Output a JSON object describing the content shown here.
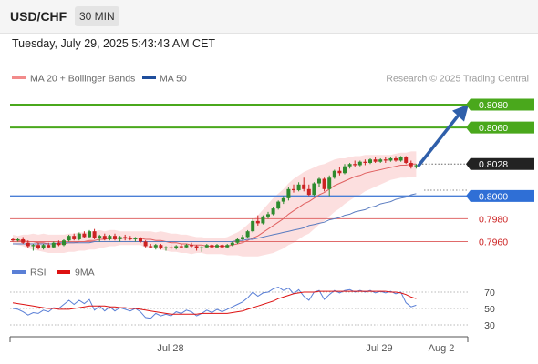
{
  "header": {
    "symbol": "USD/CHF",
    "timeframe": "30 MIN",
    "datetime": "Tuesday, July 29, 2025 5:43:43 AM CET"
  },
  "legend": {
    "ma20": "MA 20 + Bollinger Bands",
    "ma50": "MA 50",
    "credit": "Research © 2025 Trading Central"
  },
  "colors": {
    "up": "#2e8b2e",
    "down": "#cc2222",
    "target": "#4aa81c",
    "pivot": "#4a7fd6",
    "support": "#e06a6a",
    "ma20": "#e06060",
    "ma50": "#5a7cc0",
    "band": "#fcd9d9",
    "arrow": "#2f5faa"
  },
  "chart_data": [
    {
      "type": "candlestick",
      "ylim": [
        0.795,
        0.8092
      ],
      "levels": [
        {
          "value": 0.808,
          "label": "0.8080",
          "kind": "target"
        },
        {
          "value": 0.806,
          "label": "0.8060",
          "kind": "target"
        },
        {
          "value": 0.8028,
          "label": "0.8028",
          "kind": "last"
        },
        {
          "value": 0.8,
          "label": "0.8000",
          "kind": "pivot"
        },
        {
          "value": 0.798,
          "label": "0.7980",
          "kind": "support"
        },
        {
          "value": 0.796,
          "label": "0.7960",
          "kind": "support"
        }
      ],
      "x_ticks": [
        "Jul 28",
        "Jul 29",
        "Aug 2"
      ],
      "series": [
        {
          "name": "MA 20 + Bollinger Bands"
        },
        {
          "name": "MA 50"
        }
      ],
      "candles": [
        [
          0.7962,
          0.7963,
          0.796,
          0.7961
        ],
        [
          0.7961,
          0.7963,
          0.796,
          0.7962
        ],
        [
          0.7962,
          0.7964,
          0.7958,
          0.7959
        ],
        [
          0.7959,
          0.7961,
          0.7954,
          0.7956
        ],
        [
          0.7956,
          0.7958,
          0.7952,
          0.7957
        ],
        [
          0.7957,
          0.7959,
          0.7953,
          0.7954
        ],
        [
          0.7954,
          0.7958,
          0.7953,
          0.7957
        ],
        [
          0.7957,
          0.7959,
          0.7954,
          0.7955
        ],
        [
          0.7955,
          0.796,
          0.7954,
          0.7959
        ],
        [
          0.7959,
          0.7961,
          0.7956,
          0.7957
        ],
        [
          0.7957,
          0.7962,
          0.7956,
          0.7961
        ],
        [
          0.7961,
          0.7966,
          0.796,
          0.7965
        ],
        [
          0.7965,
          0.7967,
          0.7961,
          0.7962
        ],
        [
          0.7962,
          0.7968,
          0.7961,
          0.7967
        ],
        [
          0.7967,
          0.7969,
          0.7963,
          0.7964
        ],
        [
          0.7964,
          0.797,
          0.7963,
          0.7969
        ],
        [
          0.7969,
          0.7971,
          0.7962,
          0.7963
        ],
        [
          0.7963,
          0.7966,
          0.796,
          0.7965
        ],
        [
          0.7965,
          0.7967,
          0.7961,
          0.7962
        ],
        [
          0.7962,
          0.7966,
          0.7961,
          0.7965
        ],
        [
          0.7965,
          0.7967,
          0.7961,
          0.7962
        ],
        [
          0.7962,
          0.7965,
          0.796,
          0.7964
        ],
        [
          0.7964,
          0.7966,
          0.7961,
          0.7963
        ],
        [
          0.7963,
          0.7965,
          0.7961,
          0.7962
        ],
        [
          0.7962,
          0.7964,
          0.796,
          0.7963
        ],
        [
          0.7963,
          0.7964,
          0.7959,
          0.796
        ],
        [
          0.796,
          0.7961,
          0.7955,
          0.7956
        ],
        [
          0.7956,
          0.7958,
          0.7954,
          0.7955
        ],
        [
          0.7955,
          0.7958,
          0.7953,
          0.7957
        ],
        [
          0.7957,
          0.7958,
          0.7953,
          0.7954
        ],
        [
          0.7954,
          0.7956,
          0.7952,
          0.7955
        ],
        [
          0.7955,
          0.7957,
          0.7953,
          0.7954
        ],
        [
          0.7954,
          0.7957,
          0.7953,
          0.7956
        ],
        [
          0.7956,
          0.7958,
          0.7954,
          0.7955
        ],
        [
          0.7955,
          0.7958,
          0.7954,
          0.7957
        ],
        [
          0.7957,
          0.7959,
          0.7955,
          0.7956
        ],
        [
          0.7956,
          0.7957,
          0.7952,
          0.7954
        ],
        [
          0.7954,
          0.7956,
          0.7951,
          0.7955
        ],
        [
          0.7955,
          0.7958,
          0.7954,
          0.7957
        ],
        [
          0.7957,
          0.7958,
          0.7954,
          0.7955
        ],
        [
          0.7955,
          0.7958,
          0.7954,
          0.7957
        ],
        [
          0.7957,
          0.7958,
          0.7954,
          0.7955
        ],
        [
          0.7955,
          0.7958,
          0.7954,
          0.7957
        ],
        [
          0.7957,
          0.796,
          0.7956,
          0.7959
        ],
        [
          0.7959,
          0.7963,
          0.7958,
          0.7962
        ],
        [
          0.7962,
          0.7966,
          0.7961,
          0.7964
        ],
        [
          0.7964,
          0.797,
          0.7963,
          0.7969
        ],
        [
          0.7969,
          0.798,
          0.7968,
          0.7978
        ],
        [
          0.7978,
          0.7983,
          0.7974,
          0.7976
        ],
        [
          0.7976,
          0.7983,
          0.7975,
          0.7982
        ],
        [
          0.7982,
          0.7986,
          0.798,
          0.7984
        ],
        [
          0.7984,
          0.799,
          0.7983,
          0.7989
        ],
        [
          0.7989,
          0.7996,
          0.7988,
          0.7995
        ],
        [
          0.7995,
          0.8,
          0.7993,
          0.7998
        ],
        [
          0.7998,
          0.8008,
          0.7996,
          0.8006
        ],
        [
          0.8006,
          0.801,
          0.8003,
          0.8005
        ],
        [
          0.8005,
          0.8012,
          0.8004,
          0.801
        ],
        [
          0.801,
          0.8016,
          0.8004,
          0.8006
        ],
        [
          0.8006,
          0.801,
          0.8,
          0.8001
        ],
        [
          0.8001,
          0.8012,
          0.8,
          0.8011
        ],
        [
          0.8011,
          0.8016,
          0.8008,
          0.8015
        ],
        [
          0.8015,
          0.8016,
          0.8004,
          0.8006
        ],
        [
          0.8006,
          0.8018,
          0.8,
          0.8016
        ],
        [
          0.8016,
          0.8023,
          0.8015,
          0.8022
        ],
        [
          0.8022,
          0.8025,
          0.8018,
          0.802
        ],
        [
          0.802,
          0.8028,
          0.8019,
          0.8026
        ],
        [
          0.8026,
          0.8029,
          0.8024,
          0.8028
        ],
        [
          0.8028,
          0.8031,
          0.8025,
          0.8027
        ],
        [
          0.8027,
          0.8031,
          0.8026,
          0.803
        ],
        [
          0.803,
          0.8032,
          0.8027,
          0.8029
        ],
        [
          0.8029,
          0.8033,
          0.8028,
          0.8032
        ],
        [
          0.8032,
          0.8034,
          0.8029,
          0.803
        ],
        [
          0.803,
          0.8033,
          0.8029,
          0.8032
        ],
        [
          0.8032,
          0.8034,
          0.8029,
          0.8031
        ],
        [
          0.8031,
          0.8034,
          0.803,
          0.8033
        ],
        [
          0.8033,
          0.8035,
          0.803,
          0.8031
        ],
        [
          0.8031,
          0.8035,
          0.803,
          0.8034
        ],
        [
          0.8034,
          0.8035,
          0.8028,
          0.8029
        ],
        [
          0.8029,
          0.8031,
          0.8024,
          0.8026
        ],
        [
          0.8026,
          0.8028,
          0.8024,
          0.8027
        ]
      ],
      "ma20": [
        0.7962,
        0.7961,
        0.7961,
        0.796,
        0.796,
        0.7959,
        0.7959,
        0.7958,
        0.7958,
        0.7958,
        0.7958,
        0.7959,
        0.7959,
        0.796,
        0.796,
        0.7961,
        0.7961,
        0.7962,
        0.7962,
        0.7963,
        0.7963,
        0.7963,
        0.7963,
        0.7963,
        0.7963,
        0.7963,
        0.7962,
        0.7962,
        0.7961,
        0.7961,
        0.796,
        0.7959,
        0.7959,
        0.7958,
        0.7958,
        0.7957,
        0.7957,
        0.7957,
        0.7956,
        0.7956,
        0.7956,
        0.7956,
        0.7956,
        0.7957,
        0.7958,
        0.7959,
        0.7961,
        0.7963,
        0.7965,
        0.7968,
        0.7971,
        0.7974,
        0.7977,
        0.798,
        0.7984,
        0.7987,
        0.799,
        0.7993,
        0.7995,
        0.7998,
        0.8001,
        0.8003,
        0.8006,
        0.8009,
        0.8011,
        0.8013,
        0.8015,
        0.8017,
        0.8018,
        0.802,
        0.8021,
        0.8022,
        0.8023,
        0.8024,
        0.8025,
        0.8026,
        0.8027,
        0.8027,
        0.8028,
        0.8028
      ],
      "ma50": [
        0.7958,
        0.7958,
        0.7958,
        0.7958,
        0.7958,
        0.7958,
        0.7958,
        0.7958,
        0.7958,
        0.7959,
        0.7959,
        0.7959,
        0.7959,
        0.7959,
        0.7959,
        0.7959,
        0.796,
        0.796,
        0.796,
        0.796,
        0.796,
        0.796,
        0.796,
        0.796,
        0.796,
        0.796,
        0.796,
        0.796,
        0.796,
        0.796,
        0.796,
        0.796,
        0.796,
        0.796,
        0.796,
        0.796,
        0.796,
        0.796,
        0.796,
        0.796,
        0.796,
        0.796,
        0.796,
        0.796,
        0.7961,
        0.7961,
        0.7962,
        0.7962,
        0.7963,
        0.7964,
        0.7965,
        0.7966,
        0.7967,
        0.7968,
        0.7969,
        0.797,
        0.7971,
        0.7972,
        0.7974,
        0.7975,
        0.7976,
        0.7977,
        0.7979,
        0.798,
        0.7981,
        0.7983,
        0.7984,
        0.7986,
        0.7987,
        0.7988,
        0.799,
        0.7991,
        0.7993,
        0.7994,
        0.7995,
        0.7997,
        0.7998,
        0.7999,
        0.8001,
        0.8002
      ],
      "band_width": [
        0.0004,
        0.0004,
        0.0005,
        0.0006,
        0.0007,
        0.0007,
        0.0008,
        0.0008,
        0.0008,
        0.0008,
        0.0008,
        0.0008,
        0.0008,
        0.0008,
        0.0008,
        0.0008,
        0.0008,
        0.0008,
        0.0007,
        0.0007,
        0.0007,
        0.0006,
        0.0006,
        0.0006,
        0.0006,
        0.0006,
        0.0007,
        0.0007,
        0.0007,
        0.0008,
        0.0008,
        0.0008,
        0.0008,
        0.0008,
        0.0008,
        0.0008,
        0.0007,
        0.0007,
        0.0007,
        0.0007,
        0.0007,
        0.0007,
        0.0008,
        0.0009,
        0.001,
        0.0012,
        0.0014,
        0.0016,
        0.0018,
        0.002,
        0.0022,
        0.0024,
        0.0025,
        0.0026,
        0.0027,
        0.0028,
        0.0028,
        0.0028,
        0.0028,
        0.0027,
        0.0026,
        0.0025,
        0.0024,
        0.0023,
        0.0022,
        0.002,
        0.0019,
        0.0018,
        0.0017,
        0.0016,
        0.0015,
        0.0014,
        0.0013,
        0.0012,
        0.0011,
        0.0011,
        0.0011,
        0.0011,
        0.0011,
        0.0011
      ]
    },
    {
      "type": "line",
      "ylim": [
        20,
        80
      ],
      "y_ticks": [
        70,
        50,
        30
      ],
      "series": [
        {
          "name": "RSI",
          "values": [
            50,
            49,
            46,
            42,
            45,
            44,
            48,
            46,
            51,
            50,
            55,
            60,
            55,
            60,
            56,
            61,
            48,
            53,
            47,
            52,
            47,
            51,
            49,
            47,
            50,
            46,
            39,
            38,
            44,
            41,
            43,
            41,
            46,
            44,
            48,
            46,
            41,
            44,
            48,
            45,
            49,
            46,
            49,
            52,
            55,
            58,
            63,
            70,
            65,
            69,
            70,
            74,
            76,
            72,
            75,
            68,
            73,
            65,
            60,
            70,
            72,
            61,
            67,
            72,
            69,
            72,
            73,
            70,
            72,
            70,
            72,
            69,
            71,
            69,
            71,
            68,
            70,
            57,
            52,
            54
          ]
        },
        {
          "name": "9MA",
          "values": [
            57,
            56,
            55,
            54,
            53,
            52,
            51,
            50,
            50,
            49,
            49,
            49,
            50,
            51,
            52,
            53,
            53,
            53,
            53,
            52,
            52,
            51,
            51,
            50,
            50,
            49,
            48,
            47,
            46,
            45,
            44,
            43,
            43,
            43,
            43,
            43,
            43,
            44,
            44,
            44,
            44,
            44,
            44,
            45,
            46,
            47,
            49,
            51,
            53,
            55,
            57,
            59,
            62,
            64,
            66,
            68,
            69,
            70,
            70,
            70,
            71,
            71,
            71,
            71,
            71,
            71,
            71,
            71,
            71,
            71,
            71,
            71,
            71,
            71,
            70,
            70,
            69,
            67,
            64,
            62
          ]
        }
      ]
    }
  ]
}
